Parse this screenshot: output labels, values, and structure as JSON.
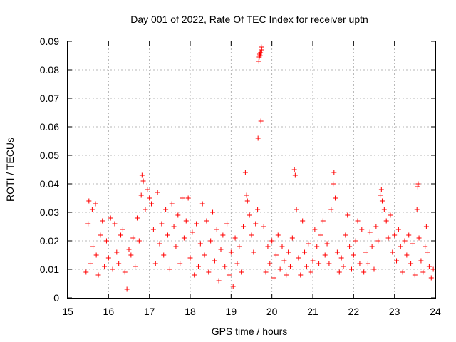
{
  "chart_data": {
    "type": "scatter",
    "title": "Day 001 of 2022, Rate Of TEC Index for receiver uptn",
    "xlabel": "GPS time / hours",
    "ylabel": "ROTI / TECUs",
    "xlim": [
      15,
      24
    ],
    "ylim": [
      0,
      0.09
    ],
    "xticks": [
      "15",
      "16",
      "17",
      "18",
      "19",
      "20",
      "21",
      "22",
      "23",
      "24"
    ],
    "yticks": [
      "0",
      "0.01",
      "0.02",
      "0.03",
      "0.04",
      "0.05",
      "0.06",
      "0.07",
      "0.08",
      "0.09"
    ],
    "grid": true,
    "marker": "+",
    "color": "#ff0000",
    "series": [
      {
        "name": "ROTI",
        "points": [
          [
            15.45,
            0.009
          ],
          [
            15.5,
            0.026
          ],
          [
            15.52,
            0.034
          ],
          [
            15.55,
            0.012
          ],
          [
            15.6,
            0.031
          ],
          [
            15.62,
            0.018
          ],
          [
            15.68,
            0.033
          ],
          [
            15.7,
            0.015
          ],
          [
            15.75,
            0.008
          ],
          [
            15.8,
            0.022
          ],
          [
            15.85,
            0.027
          ],
          [
            15.9,
            0.011
          ],
          [
            15.95,
            0.02
          ],
          [
            16.0,
            0.014
          ],
          [
            16.05,
            0.028
          ],
          [
            16.1,
            0.01
          ],
          [
            16.15,
            0.026
          ],
          [
            16.2,
            0.016
          ],
          [
            16.25,
            0.012
          ],
          [
            16.3,
            0.022
          ],
          [
            16.35,
            0.024
          ],
          [
            16.4,
            0.009
          ],
          [
            16.45,
            0.003
          ],
          [
            16.5,
            0.017
          ],
          [
            16.55,
            0.015
          ],
          [
            16.6,
            0.021
          ],
          [
            16.65,
            0.011
          ],
          [
            16.7,
            0.028
          ],
          [
            16.75,
            0.02
          ],
          [
            16.8,
            0.036
          ],
          [
            16.82,
            0.043
          ],
          [
            16.85,
            0.041
          ],
          [
            16.9,
            0.031
          ],
          [
            16.95,
            0.038
          ],
          [
            17.0,
            0.035
          ],
          [
            17.05,
            0.033
          ],
          [
            17.1,
            0.024
          ],
          [
            17.15,
            0.012
          ],
          [
            17.2,
            0.037
          ],
          [
            17.25,
            0.019
          ],
          [
            17.3,
            0.026
          ],
          [
            17.35,
            0.015
          ],
          [
            17.4,
            0.031
          ],
          [
            17.45,
            0.022
          ],
          [
            17.5,
            0.01
          ],
          [
            17.55,
            0.033
          ],
          [
            17.6,
            0.025
          ],
          [
            17.65,
            0.018
          ],
          [
            17.7,
            0.029
          ],
          [
            17.75,
            0.012
          ],
          [
            17.8,
            0.035
          ],
          [
            17.85,
            0.021
          ],
          [
            17.9,
            0.027
          ],
          [
            17.95,
            0.035
          ],
          [
            18.0,
            0.014
          ],
          [
            18.05,
            0.023
          ],
          [
            18.1,
            0.008
          ],
          [
            18.15,
            0.026
          ],
          [
            18.2,
            0.011
          ],
          [
            18.25,
            0.019
          ],
          [
            18.3,
            0.033
          ],
          [
            18.35,
            0.015
          ],
          [
            18.4,
            0.027
          ],
          [
            18.45,
            0.009
          ],
          [
            18.5,
            0.02
          ],
          [
            18.55,
            0.03
          ],
          [
            18.6,
            0.013
          ],
          [
            18.65,
            0.024
          ],
          [
            18.7,
            0.006
          ],
          [
            18.75,
            0.017
          ],
          [
            18.8,
            0.022
          ],
          [
            18.85,
            0.011
          ],
          [
            18.9,
            0.026
          ],
          [
            18.95,
            0.008
          ],
          [
            19.0,
            0.016
          ],
          [
            19.05,
            0.004
          ],
          [
            19.1,
            0.021
          ],
          [
            19.15,
            0.012
          ],
          [
            19.2,
            0.018
          ],
          [
            19.25,
            0.009
          ],
          [
            19.3,
            0.025
          ],
          [
            19.35,
            0.044
          ],
          [
            19.38,
            0.036
          ],
          [
            19.4,
            0.034
          ],
          [
            19.45,
            0.029
          ],
          [
            19.5,
            0.022
          ],
          [
            19.55,
            0.016
          ],
          [
            19.6,
            0.026
          ],
          [
            19.65,
            0.031
          ],
          [
            19.66,
            0.056
          ],
          [
            19.68,
            0.083
          ],
          [
            19.69,
            0.0845
          ],
          [
            19.7,
            0.0855
          ],
          [
            19.71,
            0.085
          ],
          [
            19.72,
            0.086
          ],
          [
            19.73,
            0.062
          ],
          [
            19.74,
            0.088
          ],
          [
            19.75,
            0.087
          ],
          [
            19.8,
            0.025
          ],
          [
            19.85,
            0.009
          ],
          [
            19.9,
            0.018
          ],
          [
            19.95,
            0.012
          ],
          [
            20.0,
            0.02
          ],
          [
            20.05,
            0.007
          ],
          [
            20.1,
            0.015
          ],
          [
            20.15,
            0.022
          ],
          [
            20.2,
            0.01
          ],
          [
            20.25,
            0.018
          ],
          [
            20.3,
            0.013
          ],
          [
            20.35,
            0.008
          ],
          [
            20.4,
            0.016
          ],
          [
            20.45,
            0.011
          ],
          [
            20.5,
            0.021
          ],
          [
            20.55,
            0.045
          ],
          [
            20.57,
            0.043
          ],
          [
            20.6,
            0.031
          ],
          [
            20.65,
            0.014
          ],
          [
            20.7,
            0.008
          ],
          [
            20.75,
            0.027
          ],
          [
            20.8,
            0.016
          ],
          [
            20.85,
            0.011
          ],
          [
            20.9,
            0.019
          ],
          [
            20.95,
            0.009
          ],
          [
            21.0,
            0.013
          ],
          [
            21.05,
            0.024
          ],
          [
            21.1,
            0.018
          ],
          [
            21.15,
            0.012
          ],
          [
            21.2,
            0.022
          ],
          [
            21.25,
            0.027
          ],
          [
            21.3,
            0.015
          ],
          [
            21.35,
            0.019
          ],
          [
            21.4,
            0.012
          ],
          [
            21.45,
            0.031
          ],
          [
            21.5,
            0.04
          ],
          [
            21.52,
            0.044
          ],
          [
            21.55,
            0.035
          ],
          [
            21.6,
            0.016
          ],
          [
            21.65,
            0.009
          ],
          [
            21.7,
            0.014
          ],
          [
            21.75,
            0.011
          ],
          [
            21.8,
            0.022
          ],
          [
            21.85,
            0.029
          ],
          [
            21.9,
            0.018
          ],
          [
            21.95,
            0.01
          ],
          [
            22.0,
            0.015
          ],
          [
            22.05,
            0.02
          ],
          [
            22.1,
            0.027
          ],
          [
            22.15,
            0.012
          ],
          [
            22.2,
            0.024
          ],
          [
            22.25,
            0.009
          ],
          [
            22.3,
            0.016
          ],
          [
            22.35,
            0.012
          ],
          [
            22.4,
            0.023
          ],
          [
            22.45,
            0.018
          ],
          [
            22.5,
            0.01
          ],
          [
            22.55,
            0.025
          ],
          [
            22.6,
            0.02
          ],
          [
            22.65,
            0.036
          ],
          [
            22.68,
            0.038
          ],
          [
            22.7,
            0.034
          ],
          [
            22.75,
            0.031
          ],
          [
            22.8,
            0.027
          ],
          [
            22.85,
            0.021
          ],
          [
            22.9,
            0.029
          ],
          [
            22.95,
            0.016
          ],
          [
            23.0,
            0.022
          ],
          [
            23.05,
            0.013
          ],
          [
            23.1,
            0.024
          ],
          [
            23.15,
            0.018
          ],
          [
            23.2,
            0.009
          ],
          [
            23.25,
            0.02
          ],
          [
            23.3,
            0.015
          ],
          [
            23.35,
            0.022
          ],
          [
            23.4,
            0.012
          ],
          [
            23.45,
            0.019
          ],
          [
            23.5,
            0.008
          ],
          [
            23.55,
            0.031
          ],
          [
            23.57,
            0.039
          ],
          [
            23.58,
            0.04
          ],
          [
            23.6,
            0.021
          ],
          [
            23.65,
            0.013
          ],
          [
            23.7,
            0.009
          ],
          [
            23.75,
            0.018
          ],
          [
            23.78,
            0.025
          ],
          [
            23.8,
            0.016
          ],
          [
            23.85,
            0.011
          ],
          [
            23.9,
            0.007
          ],
          [
            23.95,
            0.01
          ]
        ]
      }
    ]
  }
}
